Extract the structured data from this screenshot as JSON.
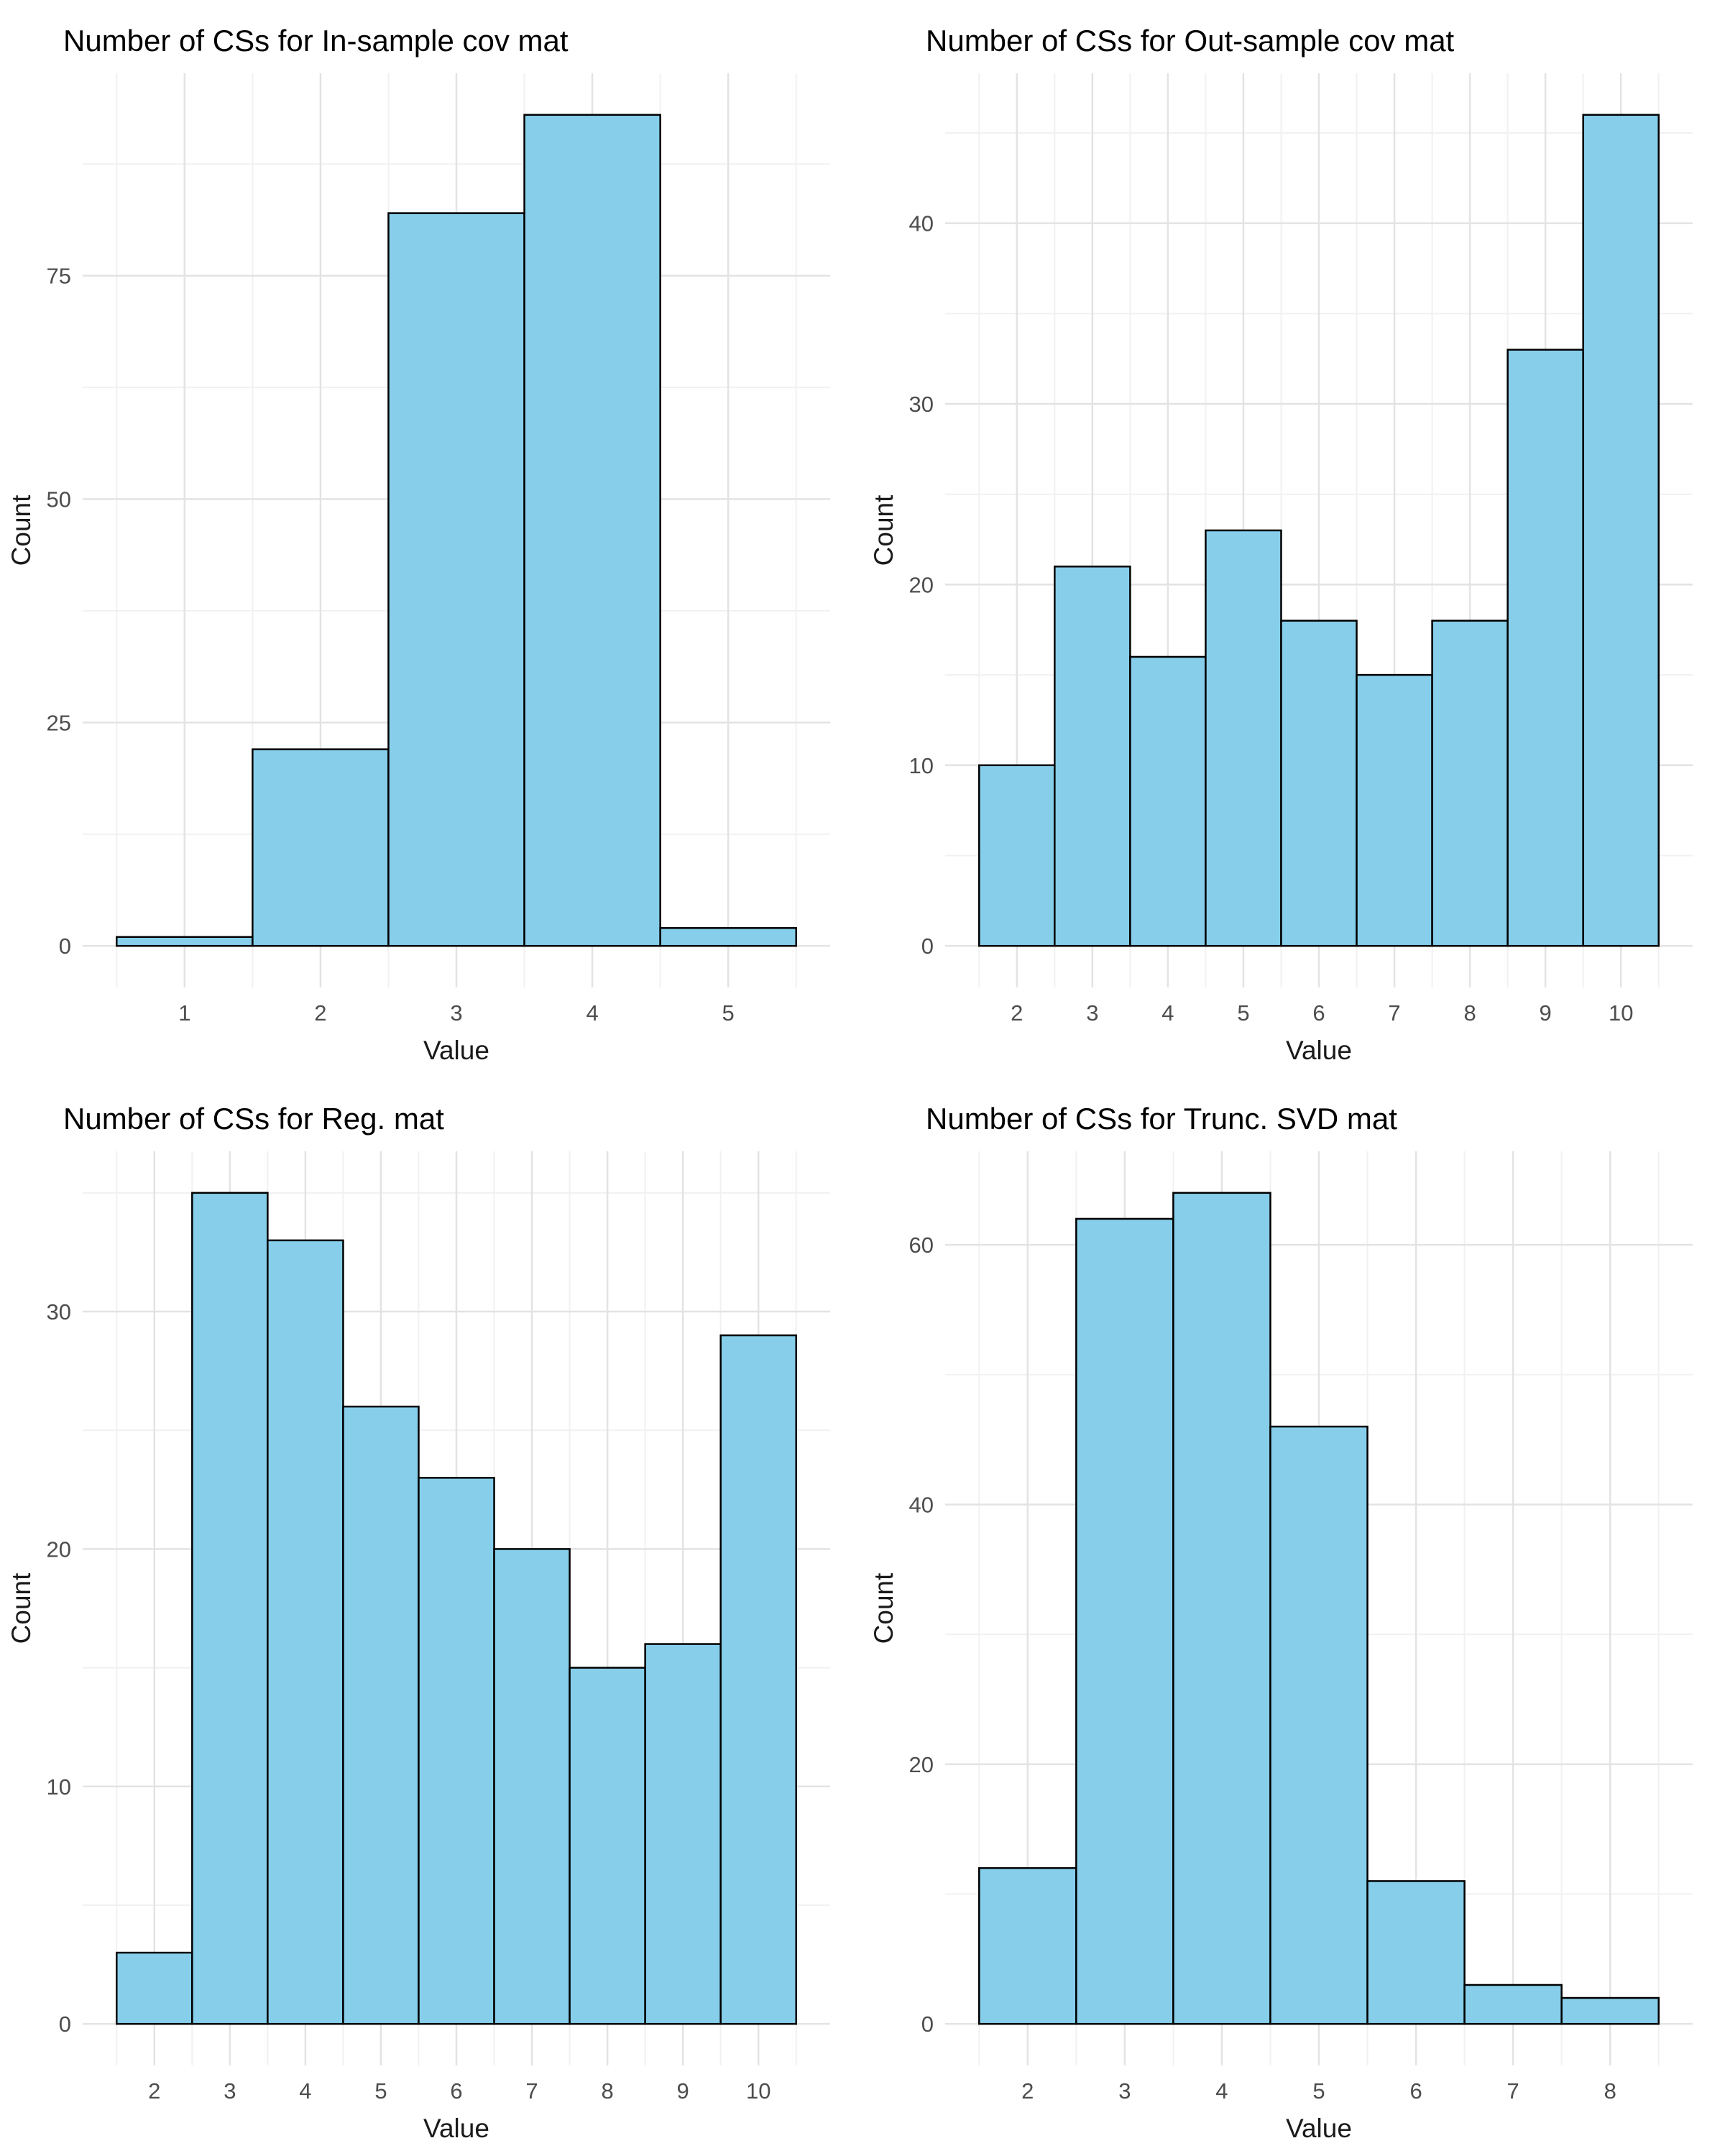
{
  "page": {
    "background": "#FFFFFF"
  },
  "colors": {
    "bar_fill": "#87CEEB",
    "bar_stroke": "#000000",
    "grid_major": "#E3E3E3",
    "grid_minor": "#F1F1F1",
    "tick_label": "#4D4D4D",
    "axis_title": "#1A1A1A",
    "plot_title": "#000000"
  },
  "chart_data": [
    {
      "type": "bar",
      "title": "Number of CSs for In-sample cov mat",
      "xlabel": "Value",
      "ylabel": "Count",
      "categories": [
        1,
        2,
        3,
        4,
        5
      ],
      "values": [
        1,
        22,
        82,
        93,
        2
      ],
      "yticks": [
        0,
        25,
        50,
        75
      ],
      "ylim": [
        0,
        93
      ],
      "grid": true,
      "legend": "none"
    },
    {
      "type": "bar",
      "title": "Number of CSs for Out-sample cov mat",
      "xlabel": "Value",
      "ylabel": "Count",
      "categories": [
        2,
        3,
        4,
        5,
        6,
        7,
        8,
        9,
        10
      ],
      "values": [
        10,
        21,
        16,
        23,
        18,
        15,
        18,
        33,
        46
      ],
      "yticks": [
        0,
        10,
        20,
        30,
        40
      ],
      "ylim": [
        0,
        46
      ],
      "grid": true,
      "legend": "none"
    },
    {
      "type": "bar",
      "title": "Number of CSs for Reg. mat",
      "xlabel": "Value",
      "ylabel": "Count",
      "categories": [
        2,
        3,
        4,
        5,
        6,
        7,
        8,
        9,
        10
      ],
      "values": [
        3,
        35,
        33,
        26,
        23,
        20,
        15,
        16,
        29
      ],
      "yticks": [
        0,
        10,
        20,
        30
      ],
      "ylim": [
        0,
        35
      ],
      "grid": true,
      "legend": "none"
    },
    {
      "type": "bar",
      "title": "Number of CSs for Trunc. SVD mat",
      "xlabel": "Value",
      "ylabel": "Count",
      "categories": [
        2,
        3,
        4,
        5,
        6,
        7,
        8
      ],
      "values": [
        12,
        62,
        64,
        46,
        11,
        3,
        2
      ],
      "yticks": [
        0,
        20,
        40,
        60
      ],
      "ylim": [
        0,
        64
      ],
      "grid": true,
      "legend": "none"
    }
  ]
}
